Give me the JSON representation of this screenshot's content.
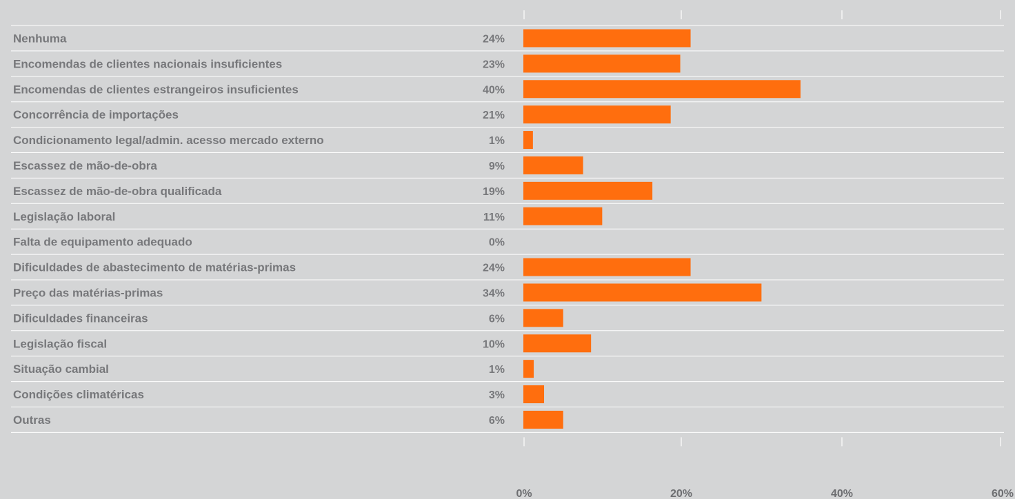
{
  "chart_data": {
    "type": "bar",
    "orientation": "horizontal",
    "categories": [
      "Nenhuma",
      "Encomendas de clientes nacionais insuficientes",
      "Encomendas de clientes estrangeiros insuficientes",
      "Concorrência de importações",
      "Condicionamento legal/admin. acesso mercado externo",
      "Escassez de mão-de-obra",
      "Escassez de mão-de-obra qualificada",
      "Legislação laboral",
      "Falta de equipamento adequado",
      "Dificuldades de abastecimento de matérias-primas",
      "Preço das matérias-primas",
      "Dificuldades financeiras",
      "Legislação fiscal",
      "Situação cambial",
      "Condições climatéricas",
      "Outras"
    ],
    "values": [
      21,
      19.7,
      34.8,
      18.5,
      1.2,
      7.5,
      16.2,
      9.9,
      0,
      21,
      29.9,
      5,
      8.5,
      1.3,
      2.6,
      5
    ],
    "value_labels": [
      "24%",
      "23%",
      "40%",
      "21%",
      "1%",
      "9%",
      "19%",
      "11%",
      "0%",
      "24%",
      "34%",
      "6%",
      "10%",
      "1%",
      "3%",
      "6%"
    ],
    "xticks": [
      "0%",
      "20%",
      "40%",
      "60%"
    ],
    "xlim": [
      0,
      60
    ],
    "bar_color": "#ff6e0e",
    "title": "",
    "xlabel": "",
    "ylabel": "",
    "grid": false,
    "legend": "none"
  }
}
